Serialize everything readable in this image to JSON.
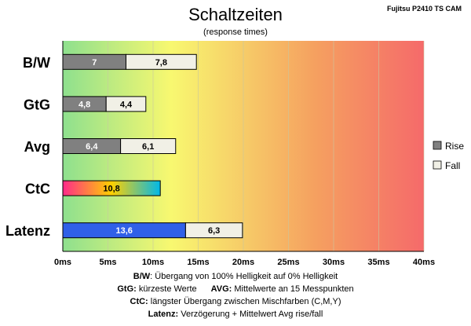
{
  "source_label": "Fujitsu P2410 TS CAM",
  "chart_data": {
    "type": "bar",
    "orientation": "horizontal",
    "stacked": true,
    "title": "Schaltzeiten",
    "subtitle": "(response times)",
    "categories": [
      "B/W",
      "GtG",
      "Avg",
      "CtC",
      "Latenz"
    ],
    "series": [
      {
        "name": "Rise",
        "values": [
          7,
          4.8,
          6.4,
          10.8,
          13.6
        ],
        "labels": [
          "7",
          "4,8",
          "6,4",
          "10,8",
          "13,6"
        ]
      },
      {
        "name": "Fall",
        "values": [
          7.8,
          4.4,
          6.1,
          null,
          6.3
        ],
        "labels": [
          "7,8",
          "4,4",
          "6,1",
          "",
          "6,3"
        ]
      }
    ],
    "xlim": [
      0,
      40
    ],
    "xticks": [
      0,
      5,
      10,
      15,
      20,
      25,
      30,
      35,
      40
    ],
    "xtick_labels": [
      "0ms",
      "5ms",
      "10ms",
      "15ms",
      "20ms",
      "25ms",
      "30ms",
      "35ms",
      "40ms"
    ],
    "legend_position": "right",
    "background_gradient": [
      "#8ee08e",
      "#f8f870",
      "#f5a060",
      "#f56a6a"
    ],
    "colors": {
      "rise": "#808080",
      "fall": "#f1f0e6",
      "latenz_rise": "#3060e8",
      "ctc_gradient": [
        "#ff2a8a",
        "#ffd000",
        "#00b8e8"
      ]
    }
  },
  "footer": {
    "line1_key": "B/W",
    "line1_text": ":  Übergang von 100% Helligkeit auf 0% Helligkeit",
    "line2a_key": "GtG:",
    "line2a_text": " kürzeste  Werte",
    "line2b_key": "AVG:",
    "line2b_text": " Mittelwerte  an 15 Messpunkten",
    "line3_key": "CtC:",
    "line3_text": " längster Übergang  zwischen Mischfarben (C,M,Y)",
    "line4_key": "Latenz:",
    "line4_text": " Verzögerung  + Mittelwert Avg rise/fall"
  }
}
